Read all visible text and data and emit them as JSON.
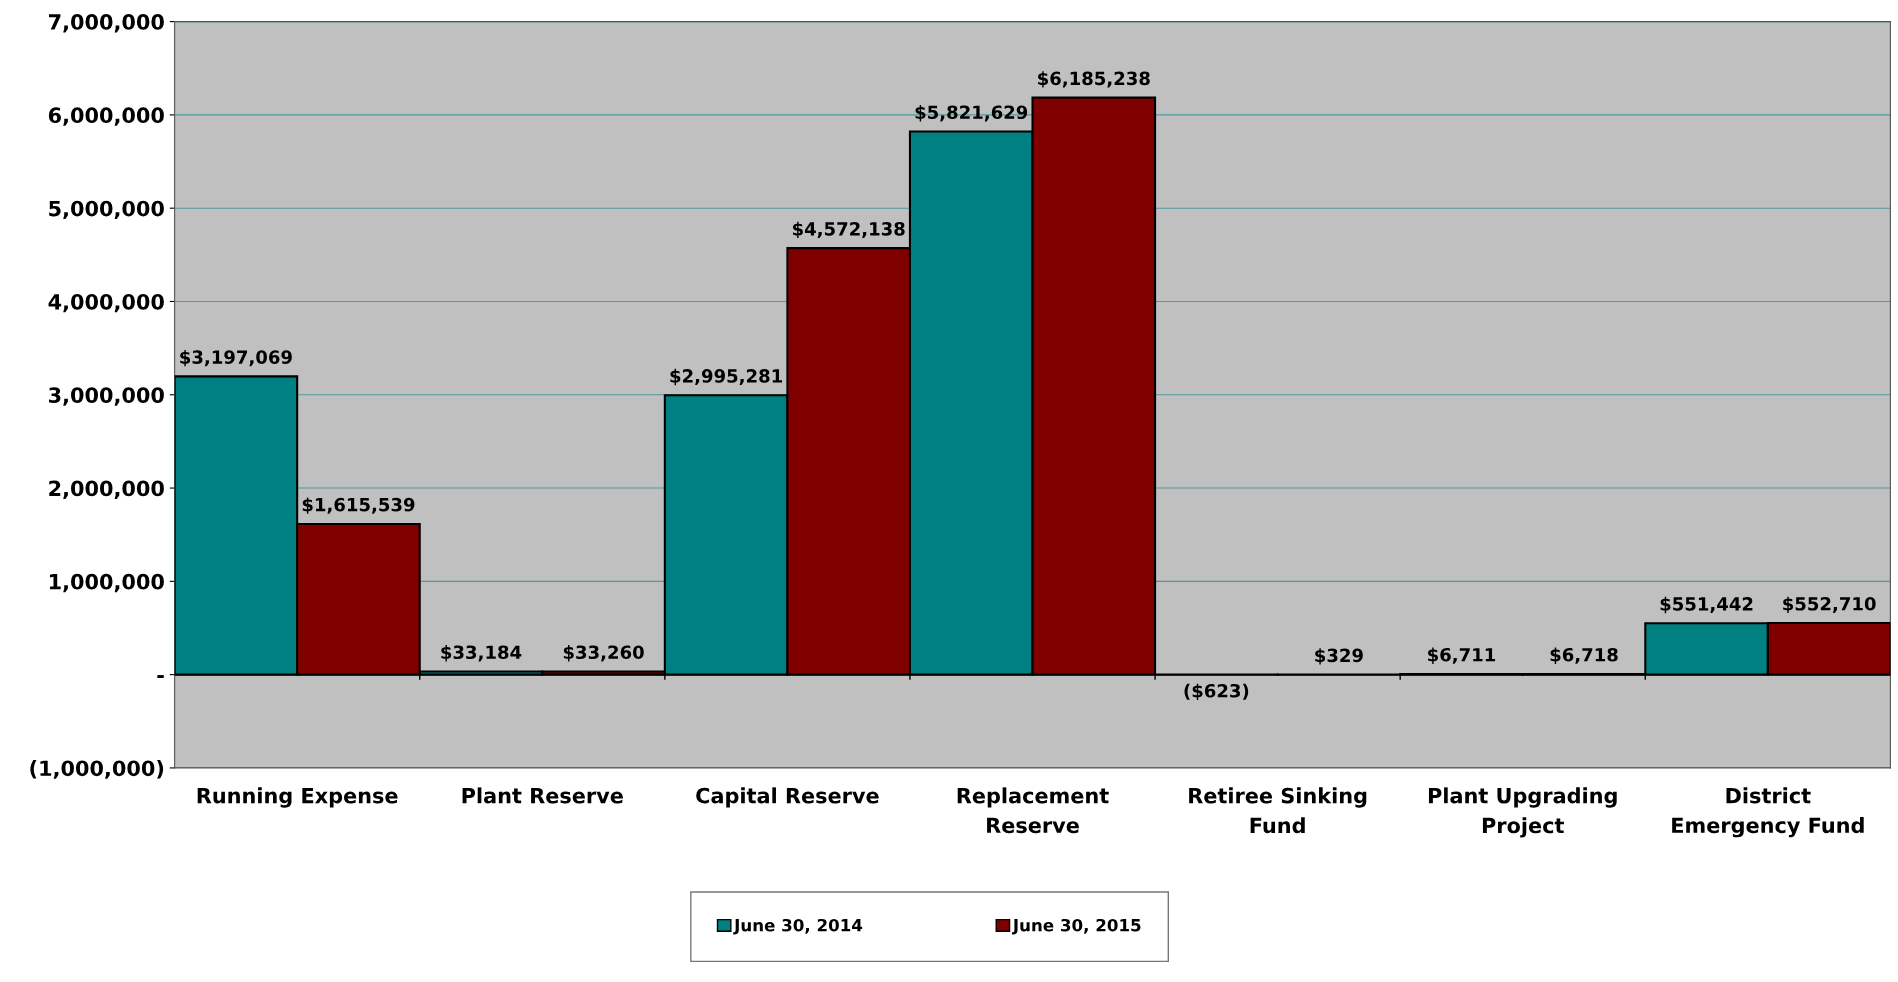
{
  "chart_data": {
    "type": "bar",
    "categories": [
      "Running Expense",
      "Plant Reserve",
      "Capital Reserve",
      "Replacement Reserve",
      "Retiree Sinking Fund",
      "Plant Upgrading Project",
      "District Emergency Fund"
    ],
    "series": [
      {
        "name": "June 30, 2014",
        "color": "#008080",
        "values": [
          3197069,
          33184,
          2995281,
          5821629,
          -623,
          6711,
          551442
        ],
        "value_labels": [
          "$3,197,069",
          "$33,184",
          "$2,995,281",
          "$5,821,629",
          "($623)",
          "$6,711",
          "$551,442"
        ]
      },
      {
        "name": "June 30, 2015",
        "color": "#800000",
        "values": [
          1615539,
          33260,
          4572138,
          6185238,
          329,
          6718,
          552710
        ],
        "value_labels": [
          "$1,615,539",
          "$33,260",
          "$4,572,138",
          "$6,185,238",
          "$329",
          "$6,718",
          "$552,710"
        ]
      }
    ],
    "ylim": [
      -1000000,
      7000000
    ],
    "yticks": [
      {
        "value": -1000000,
        "label": "(1,000,000)"
      },
      {
        "value": 0,
        "label": "-"
      },
      {
        "value": 1000000,
        "label": "1,000,000"
      },
      {
        "value": 2000000,
        "label": "2,000,000"
      },
      {
        "value": 3000000,
        "label": "3,000,000"
      },
      {
        "value": 4000000,
        "label": "4,000,000"
      },
      {
        "value": 5000000,
        "label": "5,000,000"
      },
      {
        "value": 6000000,
        "label": "6,000,000"
      },
      {
        "value": 7000000,
        "label": "7,000,000"
      }
    ],
    "grid": "y",
    "legend": "bottom"
  }
}
